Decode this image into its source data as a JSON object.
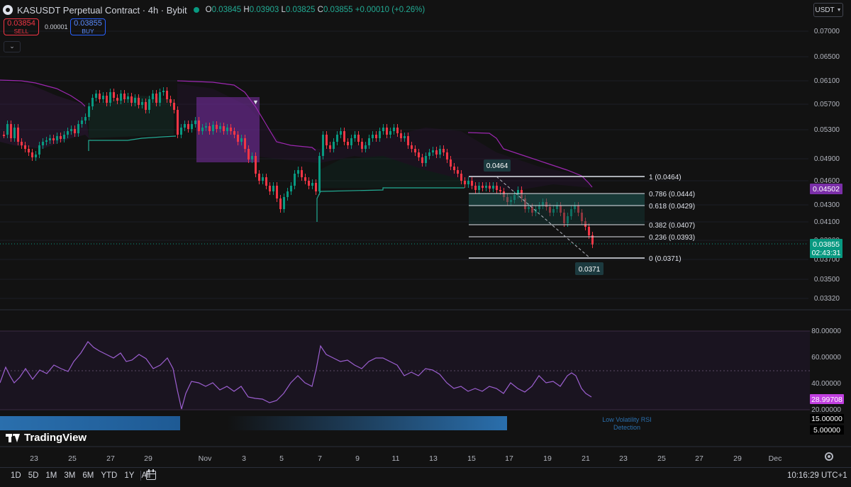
{
  "header": {
    "symbol_title": "KASUSDT Perpetual Contract · 4h · Bybit",
    "ohlc": {
      "open_label": "O",
      "open": "0.03845",
      "high_label": "H",
      "high": "0.03903",
      "low_label": "L",
      "low": "0.03825",
      "close_label": "C",
      "close": "0.03855",
      "change": "+0.00010 (+0.26%)"
    },
    "sell_price": "0.03854",
    "sell_label": "SELL",
    "buy_price": "0.03855",
    "buy_label": "BUY",
    "spread": "0.00001",
    "collapse_icon": "chevron-down-icon"
  },
  "currency_selector": "USDT",
  "price_axis": {
    "ticks": [
      "0.07000",
      "0.06500",
      "0.06100",
      "0.05700",
      "0.05300",
      "0.04900",
      "0.04600",
      "0.04300",
      "0.04100",
      "0.03900",
      "0.03700",
      "0.03500",
      "0.03320"
    ],
    "supertrend_tag": "0.04502",
    "price_tag": "0.03855",
    "countdown": "02:43:31"
  },
  "rsi_axis": {
    "ticks": [
      "80.00000",
      "60.00000",
      "40.00000",
      "20.00000"
    ],
    "rsi_tag": "28.99708",
    "bar_value_15": "15.00000",
    "bar_value_5": "5.00000",
    "indicator_label": "Low Volatility RSI\nDetection",
    "indicator_label_line1": "Low Volatility RSI",
    "indicator_label_line2": "Detection"
  },
  "time_axis": [
    "23",
    "25",
    "27",
    "29",
    "Nov",
    "3",
    "5",
    "7",
    "9",
    "11",
    "13",
    "15",
    "17",
    "19",
    "21",
    "23",
    "25",
    "27",
    "29",
    "Dec"
  ],
  "fibonacci": {
    "levels": [
      {
        "ratio": "1",
        "price": 0.0464,
        "label": "1 (0.0464)"
      },
      {
        "ratio": "0.786",
        "price": 0.0444,
        "label": "0.786 (0.0444)"
      },
      {
        "ratio": "0.618",
        "price": 0.0429,
        "label": "0.618 (0.0429)"
      },
      {
        "ratio": "0.382",
        "price": 0.0407,
        "label": "0.382 (0.0407)"
      },
      {
        "ratio": "0.236",
        "price": 0.0393,
        "label": "0.236 (0.0393)"
      },
      {
        "ratio": "0",
        "price": 0.0371,
        "label": "0 (0.0371)"
      }
    ],
    "high_callout": "0.0464",
    "low_callout": "0.0371"
  },
  "logo_text": "TradingView",
  "bottom_bar": {
    "periods": [
      "1D",
      "5D",
      "1M",
      "3M",
      "6M",
      "YTD",
      "1Y",
      "All"
    ],
    "clock": "10:16:29 UTC+1"
  },
  "colors": {
    "background": "#121212",
    "up": "#089981",
    "down": "#f23645",
    "supertrend_up": "#22ab94",
    "supertrend_down": "#9c27b0",
    "rsi_line": "#9c5fd0",
    "box": "#7b2fa8",
    "blue_bar": "#2a6fad"
  }
}
